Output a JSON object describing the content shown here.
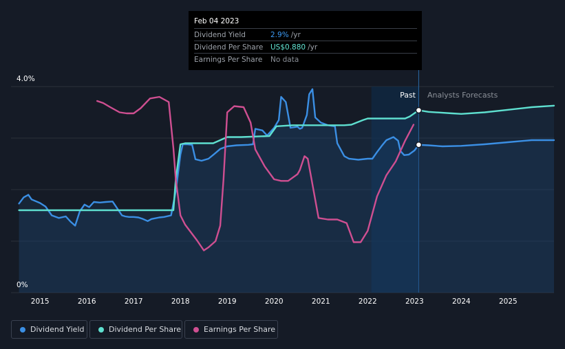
{
  "tooltip": {
    "date": "Feb 04 2023",
    "rows": [
      {
        "label": "Dividend Yield",
        "value": "2.9%",
        "unit": "/yr",
        "color": "#3d9bf5"
      },
      {
        "label": "Dividend Per Share",
        "value": "US$0.880",
        "unit": "/yr",
        "color": "#63e7d5"
      },
      {
        "label": "Earnings Per Share",
        "value": "No data",
        "unit": "",
        "color": "#8b9098"
      }
    ]
  },
  "labels": {
    "past": "Past",
    "forecast": "Analysts Forecasts",
    "ytop": "4.0%",
    "ybottom": "0%"
  },
  "legend": [
    {
      "label": "Dividend Yield",
      "color": "#3b8fe4"
    },
    {
      "label": "Dividend Per Share",
      "color": "#5fe0d0"
    },
    {
      "label": "Earnings Per Share",
      "color": "#cf4f91"
    }
  ],
  "chart_data": {
    "type": "line",
    "xticks": [
      "2015",
      "2016",
      "2017",
      "2018",
      "2019",
      "2020",
      "2021",
      "2022",
      "2023",
      "2024",
      "2025"
    ],
    "xlim": [
      2014.38,
      2025.98
    ],
    "ylim": [
      0,
      4.0
    ],
    "ylabel_ticks": [
      "0%",
      "4.0%"
    ],
    "past_end": 2023.09,
    "forecast_shade_start": 2022.08,
    "grid": true,
    "series": [
      {
        "name": "Dividend Yield",
        "color": "#3b8fe4",
        "fill": true,
        "values": [
          [
            2014.55,
            1.73
          ],
          [
            2014.65,
            1.85
          ],
          [
            2014.75,
            1.9
          ],
          [
            2014.82,
            1.81
          ],
          [
            2015.0,
            1.74
          ],
          [
            2015.12,
            1.67
          ],
          [
            2015.25,
            1.5
          ],
          [
            2015.4,
            1.45
          ],
          [
            2015.55,
            1.48
          ],
          [
            2015.65,
            1.38
          ],
          [
            2015.75,
            1.3
          ],
          [
            2015.85,
            1.58
          ],
          [
            2015.95,
            1.71
          ],
          [
            2016.05,
            1.66
          ],
          [
            2016.15,
            1.76
          ],
          [
            2016.28,
            1.75
          ],
          [
            2016.4,
            1.76
          ],
          [
            2016.55,
            1.77
          ],
          [
            2016.75,
            1.5
          ],
          [
            2016.82,
            1.48
          ],
          [
            2016.9,
            1.47
          ],
          [
            2017.0,
            1.47
          ],
          [
            2017.1,
            1.46
          ],
          [
            2017.2,
            1.43
          ],
          [
            2017.3,
            1.39
          ],
          [
            2017.38,
            1.43
          ],
          [
            2017.55,
            1.46
          ],
          [
            2017.65,
            1.47
          ],
          [
            2017.8,
            1.5
          ],
          [
            2017.9,
            1.97
          ],
          [
            2018.0,
            2.68
          ],
          [
            2018.05,
            2.88
          ],
          [
            2018.15,
            2.88
          ],
          [
            2018.25,
            2.87
          ],
          [
            2018.32,
            2.59
          ],
          [
            2018.45,
            2.56
          ],
          [
            2018.6,
            2.6
          ],
          [
            2018.72,
            2.69
          ],
          [
            2018.85,
            2.79
          ],
          [
            2019.0,
            2.84
          ],
          [
            2019.2,
            2.86
          ],
          [
            2019.45,
            2.87
          ],
          [
            2019.55,
            2.88
          ],
          [
            2019.6,
            3.18
          ],
          [
            2019.75,
            3.15
          ],
          [
            2019.85,
            3.05
          ],
          [
            2020.0,
            3.2
          ],
          [
            2020.1,
            3.35
          ],
          [
            2020.15,
            3.8
          ],
          [
            2020.25,
            3.7
          ],
          [
            2020.35,
            3.2
          ],
          [
            2020.5,
            3.22
          ],
          [
            2020.55,
            3.18
          ],
          [
            2020.6,
            3.2
          ],
          [
            2020.7,
            3.45
          ],
          [
            2020.75,
            3.85
          ],
          [
            2020.82,
            3.95
          ],
          [
            2020.88,
            3.4
          ],
          [
            2021.0,
            3.3
          ],
          [
            2021.15,
            3.25
          ],
          [
            2021.3,
            3.23
          ],
          [
            2021.35,
            2.9
          ],
          [
            2021.5,
            2.65
          ],
          [
            2021.6,
            2.6
          ],
          [
            2021.8,
            2.58
          ],
          [
            2022.0,
            2.6
          ],
          [
            2022.1,
            2.6
          ],
          [
            2022.2,
            2.73
          ],
          [
            2022.3,
            2.85
          ],
          [
            2022.4,
            2.96
          ],
          [
            2022.55,
            3.02
          ],
          [
            2022.65,
            2.95
          ],
          [
            2022.7,
            2.75
          ],
          [
            2022.78,
            2.67
          ],
          [
            2022.88,
            2.68
          ],
          [
            2023.0,
            2.76
          ],
          [
            2023.09,
            2.87
          ],
          [
            2023.3,
            2.86
          ],
          [
            2023.6,
            2.84
          ],
          [
            2024.0,
            2.85
          ],
          [
            2024.5,
            2.88
          ],
          [
            2025.0,
            2.92
          ],
          [
            2025.5,
            2.96
          ],
          [
            2025.98,
            2.96
          ]
        ]
      },
      {
        "name": "Dividend Per Share",
        "color": "#5fe0d0",
        "fill": true,
        "values": [
          [
            2014.55,
            1.6
          ],
          [
            2017.85,
            1.6
          ],
          [
            2017.9,
            2.2
          ],
          [
            2018.0,
            2.88
          ],
          [
            2018.1,
            2.9
          ],
          [
            2018.3,
            2.9
          ],
          [
            2018.7,
            2.9
          ],
          [
            2019.0,
            3.02
          ],
          [
            2019.3,
            3.02
          ],
          [
            2019.9,
            3.04
          ],
          [
            2020.05,
            3.23
          ],
          [
            2020.4,
            3.25
          ],
          [
            2021.5,
            3.25
          ],
          [
            2021.65,
            3.26
          ],
          [
            2021.9,
            3.35
          ],
          [
            2022.0,
            3.38
          ],
          [
            2022.8,
            3.38
          ],
          [
            2022.9,
            3.42
          ],
          [
            2023.09,
            3.54
          ],
          [
            2023.3,
            3.51
          ],
          [
            2023.8,
            3.48
          ],
          [
            2024.0,
            3.47
          ],
          [
            2024.5,
            3.5
          ],
          [
            2025.0,
            3.55
          ],
          [
            2025.5,
            3.6
          ],
          [
            2025.98,
            3.63
          ]
        ]
      },
      {
        "name": "Earnings Per Share",
        "color": "#cf4f91",
        "fill": false,
        "values": [
          [
            2016.22,
            3.72
          ],
          [
            2016.35,
            3.68
          ],
          [
            2016.5,
            3.6
          ],
          [
            2016.7,
            3.5
          ],
          [
            2016.85,
            3.48
          ],
          [
            2017.0,
            3.48
          ],
          [
            2017.15,
            3.58
          ],
          [
            2017.35,
            3.77
          ],
          [
            2017.55,
            3.8
          ],
          [
            2017.75,
            3.7
          ],
          [
            2017.85,
            2.8
          ],
          [
            2017.9,
            2.2
          ],
          [
            2018.0,
            1.5
          ],
          [
            2018.1,
            1.32
          ],
          [
            2018.2,
            1.2
          ],
          [
            2018.35,
            1.02
          ],
          [
            2018.5,
            0.82
          ],
          [
            2018.6,
            0.88
          ],
          [
            2018.75,
            1.0
          ],
          [
            2018.85,
            1.3
          ],
          [
            2018.92,
            2.2
          ],
          [
            2019.0,
            3.5
          ],
          [
            2019.15,
            3.62
          ],
          [
            2019.35,
            3.6
          ],
          [
            2019.5,
            3.3
          ],
          [
            2019.6,
            2.78
          ],
          [
            2019.8,
            2.45
          ],
          [
            2020.0,
            2.2
          ],
          [
            2020.15,
            2.17
          ],
          [
            2020.3,
            2.17
          ],
          [
            2020.5,
            2.3
          ],
          [
            2020.55,
            2.38
          ],
          [
            2020.65,
            2.65
          ],
          [
            2020.72,
            2.6
          ],
          [
            2020.8,
            2.2
          ],
          [
            2020.95,
            1.45
          ],
          [
            2021.15,
            1.42
          ],
          [
            2021.35,
            1.42
          ],
          [
            2021.55,
            1.35
          ],
          [
            2021.7,
            0.98
          ],
          [
            2021.85,
            0.98
          ],
          [
            2022.0,
            1.2
          ],
          [
            2022.2,
            1.87
          ],
          [
            2022.4,
            2.28
          ],
          [
            2022.6,
            2.55
          ],
          [
            2022.8,
            2.95
          ],
          [
            2022.98,
            3.26
          ]
        ]
      }
    ],
    "markers": [
      {
        "series": "Dividend Per Share",
        "x": 2023.09,
        "y": 3.54
      },
      {
        "series": "Dividend Yield",
        "x": 2023.09,
        "y": 2.87
      }
    ]
  }
}
